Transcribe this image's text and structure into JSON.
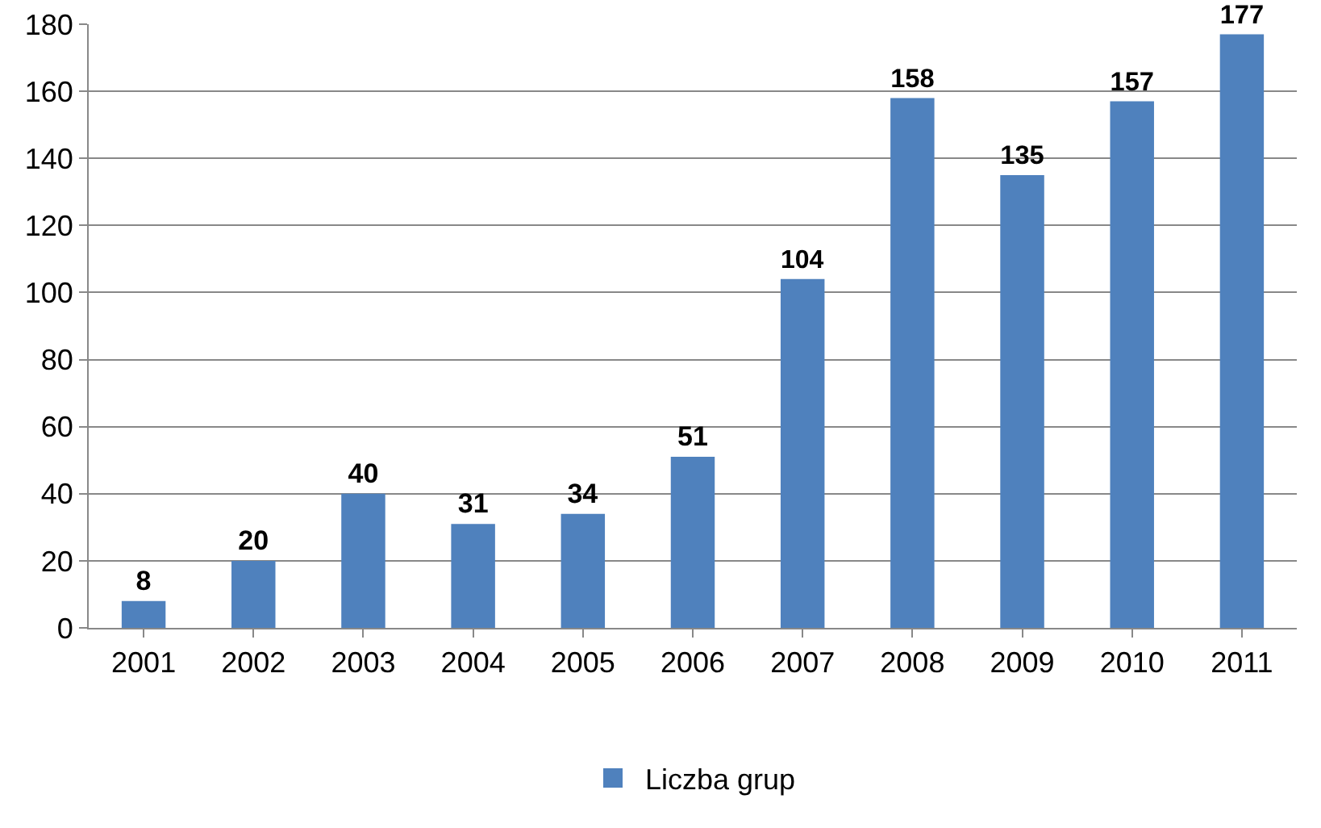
{
  "chart_data": {
    "type": "bar",
    "categories": [
      "2001",
      "2002",
      "2003",
      "2004",
      "2005",
      "2006",
      "2007",
      "2008",
      "2009",
      "2010",
      "2011"
    ],
    "series": [
      {
        "name": "Liczba grup",
        "color": "#4f81bd",
        "values": [
          8,
          20,
          40,
          31,
          34,
          51,
          104,
          158,
          135,
          157,
          177
        ]
      }
    ],
    "ylim": [
      0,
      180
    ],
    "yticks": [
      0,
      20,
      40,
      60,
      80,
      100,
      120,
      140,
      160,
      180
    ],
    "grid": "y",
    "legend": "bottom",
    "data_labels": true
  }
}
